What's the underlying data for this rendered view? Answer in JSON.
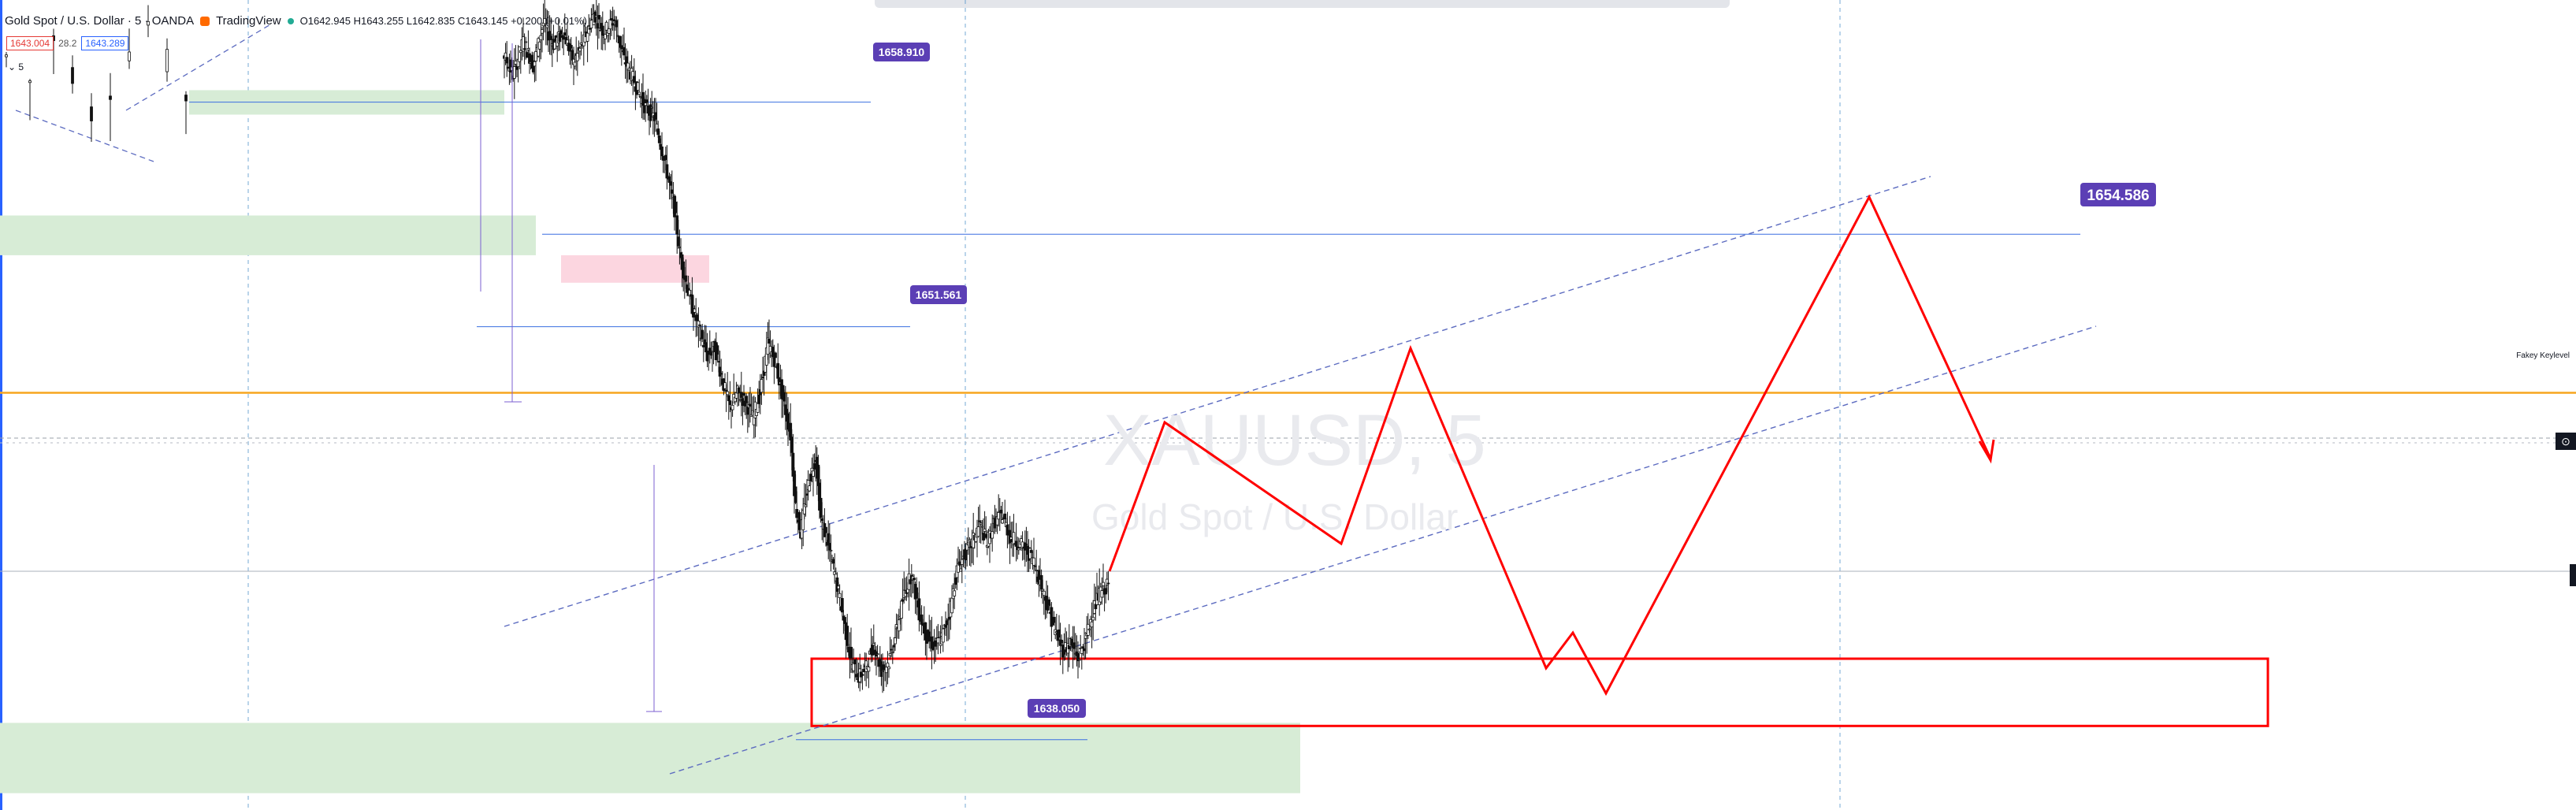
{
  "header": {
    "symbol_title": "Gold Spot / U.S. Dollar · 5 · OANDA",
    "brand": "TradingView",
    "ohlc": "O1642.945  H1643.255  L1642.835  C1643.145  +0.200 (+0.01%)",
    "sell_price": "1643.004",
    "spread": "28.2",
    "buy_price": "1643.289",
    "collapse": "⌄ 5"
  },
  "watermark": {
    "symbol": "XAUUSD, 5",
    "description": "Gold Spot / U.S. Dollar"
  },
  "annotations": {
    "keylevel_label": "Fakey Keylevel"
  },
  "colors": {
    "zone_green": "#d7ecd6",
    "zone_pink": "#fcd6e0",
    "label_purple": "#5b3fb5",
    "projection_red": "#ff0000",
    "keylevel_orange": "#f7a51f",
    "grid_blue": "#3d85c6",
    "channel": "#5c6bc0"
  },
  "chart_data": {
    "type": "candlestick",
    "symbol": "XAUUSD",
    "timeframe": "5",
    "ylim": [
      1635.75,
      1662.25
    ],
    "levels": [
      {
        "label": "1658.910",
        "price": 1658.91
      },
      {
        "label": "1654.586",
        "price": 1654.586
      },
      {
        "label": "1651.561",
        "price": 1651.561
      },
      {
        "label": "1638.050",
        "price": 1638.05
      }
    ],
    "keylevel": {
      "label": "Fakey Keylevel",
      "price": 1649.4
    },
    "close_path": [
      [
        0,
        1660.5
      ],
      [
        8,
        1659.8
      ],
      [
        16,
        1660.9
      ],
      [
        24,
        1660.1
      ],
      [
        32,
        1661.5
      ],
      [
        40,
        1660.8
      ],
      [
        48,
        1661.2
      ],
      [
        56,
        1660.2
      ],
      [
        64,
        1660.9
      ],
      [
        72,
        1661.8
      ],
      [
        80,
        1661.2
      ],
      [
        88,
        1661.6
      ],
      [
        96,
        1660.3
      ],
      [
        104,
        1659.6
      ],
      [
        112,
        1658.8
      ],
      [
        120,
        1658.4
      ],
      [
        128,
        1657.0
      ],
      [
        136,
        1655.4
      ],
      [
        140,
        1654.0
      ],
      [
        144,
        1653.2
      ],
      [
        150,
        1652.2
      ],
      [
        156,
        1651.4
      ],
      [
        162,
        1650.6
      ],
      [
        168,
        1650.9
      ],
      [
        174,
        1649.8
      ],
      [
        180,
        1648.9
      ],
      [
        186,
        1649.4
      ],
      [
        192,
        1649.1
      ],
      [
        198,
        1648.6
      ],
      [
        204,
        1649.4
      ],
      [
        210,
        1651.0
      ],
      [
        216,
        1650.4
      ],
      [
        222,
        1649.2
      ],
      [
        228,
        1648.0
      ],
      [
        232,
        1645.7
      ],
      [
        236,
        1644.8
      ],
      [
        242,
        1646.4
      ],
      [
        248,
        1647.3
      ],
      [
        252,
        1645.3
      ],
      [
        258,
        1644.4
      ],
      [
        264,
        1643.3
      ],
      [
        270,
        1642.0
      ],
      [
        276,
        1640.6
      ],
      [
        282,
        1640.1
      ],
      [
        288,
        1640.4
      ],
      [
        294,
        1641.2
      ],
      [
        300,
        1640.3
      ],
      [
        306,
        1640.6
      ],
      [
        312,
        1641.6
      ],
      [
        318,
        1642.8
      ],
      [
        324,
        1643.5
      ],
      [
        330,
        1642.2
      ],
      [
        336,
        1641.4
      ],
      [
        342,
        1641.1
      ],
      [
        348,
        1641.4
      ],
      [
        354,
        1642.2
      ],
      [
        360,
        1643.6
      ],
      [
        366,
        1644.1
      ],
      [
        372,
        1644.5
      ],
      [
        378,
        1645.1
      ],
      [
        384,
        1644.5
      ],
      [
        390,
        1645.2
      ],
      [
        396,
        1645.4
      ],
      [
        402,
        1644.7
      ],
      [
        408,
        1644.5
      ],
      [
        414,
        1644.3
      ],
      [
        420,
        1644.0
      ],
      [
        426,
        1643.2
      ],
      [
        432,
        1642.4
      ],
      [
        438,
        1641.6
      ],
      [
        444,
        1641.0
      ],
      [
        450,
        1641.2
      ],
      [
        456,
        1640.7
      ],
      [
        462,
        1641.3
      ],
      [
        468,
        1642.3
      ],
      [
        474,
        1642.9
      ],
      [
        480,
        1643.1
      ]
    ],
    "projection_path": [
      [
        0,
        1643.1
      ],
      [
        36,
        1646.5
      ],
      [
        148,
        1643.8
      ],
      [
        196,
        1649.2
      ],
      [
        268,
        1639.2
      ],
      [
        284,
        1640.3
      ],
      [
        298,
        1638.5
      ],
      [
        406,
        1654.5
      ],
      [
        460,
        1645.5
      ]
    ],
    "zones": [
      {
        "type": "demand",
        "from": [
          0,
          1659.3
        ],
        "to": [
          140,
          1658.5
        ]
      },
      {
        "type": "demand",
        "from": [
          0,
          1655.2
        ],
        "to": [
          140,
          1653.9
        ]
      },
      {
        "type": "supply",
        "from": [
          146,
          1653.9
        ],
        "to": [
          196,
          1653.0
        ]
      },
      {
        "type": "demand",
        "from": [
          0,
          1638.6
        ],
        "to": [
          460,
          1636.3
        ]
      },
      {
        "type": "target-box",
        "from": [
          0,
          1640.7
        ],
        "to": [
          886,
          1638.5
        ]
      }
    ]
  }
}
